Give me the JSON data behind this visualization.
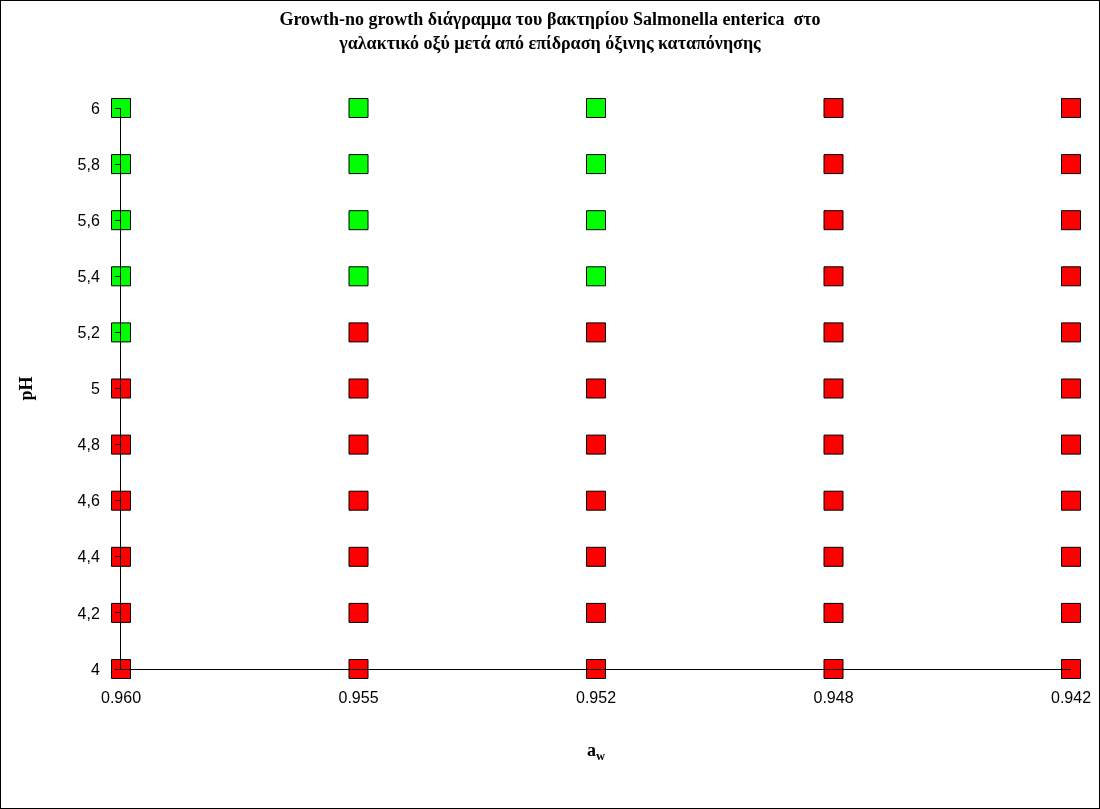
{
  "chart_data": {
    "type": "scatter",
    "title": "Growth-no growth διάγραμμα του βακτηρίου Salmonella enterica  στο\nγαλακτικό οξύ μετά από επίδραση όξινης καταπόνησης",
    "xlabel": "a$_{w}$",
    "ylabel": "pH",
    "categories": [
      "0.960",
      "0.955",
      "0.952",
      "0.948",
      "0.942"
    ],
    "ylim": [
      4,
      6
    ],
    "yticks": [
      4,
      {
        "value": 4.2,
        "label": "4,2"
      },
      {
        "value": 4.4,
        "label": "4,4"
      },
      {
        "value": 4.6,
        "label": "4,6"
      },
      {
        "value": 4.8,
        "label": "4,8"
      },
      5,
      {
        "value": 5.2,
        "label": "5,2"
      },
      {
        "value": 5.4,
        "label": "5,4"
      },
      {
        "value": 5.6,
        "label": "5,6"
      },
      {
        "value": 5.8,
        "label": "5,8"
      },
      6
    ],
    "grid": false,
    "marker": "square",
    "series": [
      {
        "color": "#00ff00",
        "x": [
          "0.960",
          "0.960",
          "0.960",
          "0.960",
          "0.960",
          "0.955",
          "0.955",
          "0.955",
          "0.955",
          "0.952",
          "0.952",
          "0.952",
          "0.952"
        ],
        "values": [
          5.2,
          5.4,
          5.6,
          5.8,
          6,
          5.4,
          5.6,
          5.8,
          6,
          5.4,
          5.6,
          5.8,
          6
        ]
      },
      {
        "color": "#ff0000",
        "x": [
          "0.960",
          "0.960",
          "0.960",
          "0.960",
          "0.960",
          "0.960",
          "0.955",
          "0.955",
          "0.955",
          "0.955",
          "0.955",
          "0.955",
          "0.955",
          "0.952",
          "0.952",
          "0.952",
          "0.952",
          "0.952",
          "0.952",
          "0.952",
          "0.948",
          "0.948",
          "0.948",
          "0.948",
          "0.948",
          "0.948",
          "0.948",
          "0.948",
          "0.948",
          "0.948",
          "0.948",
          "0.942",
          "0.942",
          "0.942",
          "0.942",
          "0.942",
          "0.942",
          "0.942",
          "0.942",
          "0.942",
          "0.942",
          "0.942"
        ],
        "values": [
          4,
          4.2,
          4.4,
          4.6,
          4.8,
          5,
          4,
          4.2,
          4.4,
          4.6,
          4.8,
          5,
          5.2,
          4,
          4.2,
          4.4,
          4.6,
          4.8,
          5,
          5.2,
          4,
          4.2,
          4.4,
          4.6,
          4.8,
          5,
          5.2,
          5.4,
          5.6,
          5.8,
          6,
          4,
          4.2,
          4.4,
          4.6,
          4.8,
          5,
          5.2,
          5.4,
          5.6,
          5.8,
          6
        ]
      }
    ]
  }
}
